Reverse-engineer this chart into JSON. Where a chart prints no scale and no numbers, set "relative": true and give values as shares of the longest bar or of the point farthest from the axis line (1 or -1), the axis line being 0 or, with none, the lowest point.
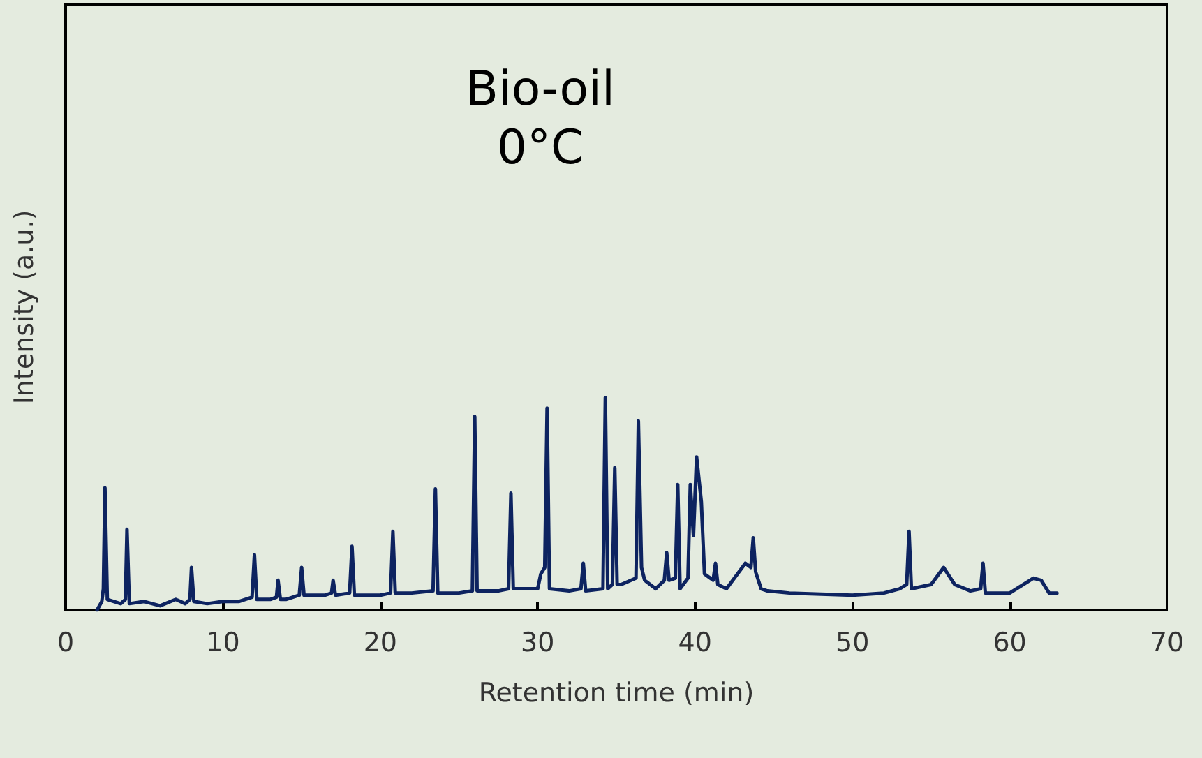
{
  "chart_data": {
    "type": "line",
    "title": "Bio-oil\n0°C",
    "xlabel": "Retention time (min)",
    "ylabel": "Intensity (a.u.)",
    "relative": true,
    "xlim": [
      0,
      70
    ],
    "xticks": [
      0,
      10,
      20,
      30,
      40,
      50,
      60,
      70
    ],
    "grid": false,
    "marker": "none",
    "line_style": "solid",
    "series": [
      {
        "color": "#0d2360",
        "x": [
          2.0,
          2.3,
          2.4,
          2.5,
          2.65,
          3.5,
          3.8,
          3.9,
          4.05,
          5.0,
          6.0,
          7.0,
          7.6,
          7.9,
          8.0,
          8.15,
          9.0,
          10.0,
          11.0,
          11.85,
          12.0,
          12.15,
          13.0,
          13.4,
          13.5,
          13.65,
          14.0,
          14.85,
          15.0,
          15.15,
          16.5,
          16.9,
          17.0,
          17.15,
          18.05,
          18.2,
          18.35,
          20.0,
          20.65,
          20.8,
          20.95,
          22.0,
          23.35,
          23.5,
          23.65,
          25.0,
          25.85,
          26.0,
          26.15,
          27.5,
          28.15,
          28.3,
          28.45,
          30.0,
          30.2,
          30.45,
          30.6,
          30.75,
          32.0,
          32.75,
          32.9,
          33.05,
          34.15,
          34.3,
          34.45,
          34.75,
          34.9,
          35.05,
          35.3,
          36.25,
          36.4,
          36.6,
          36.8,
          37.5,
          38.05,
          38.2,
          38.35,
          38.75,
          38.9,
          39.05,
          39.55,
          39.7,
          39.9,
          40.1,
          40.4,
          40.6,
          41.15,
          41.3,
          41.45,
          42.0,
          43.2,
          43.55,
          43.7,
          43.85,
          44.2,
          44.6,
          46.0,
          50.0,
          52.0,
          53.0,
          53.45,
          53.6,
          53.75,
          55.0,
          55.8,
          56.5,
          57.5,
          58.15,
          58.3,
          58.45,
          60.0,
          61.5,
          62.0,
          62.5,
          63.0
        ],
        "values": [
          0,
          0.04,
          0.1,
          0.575,
          0.05,
          0.03,
          0.05,
          0.38,
          0.03,
          0.04,
          0.02,
          0.05,
          0.03,
          0.05,
          0.2,
          0.04,
          0.03,
          0.04,
          0.04,
          0.06,
          0.26,
          0.05,
          0.05,
          0.06,
          0.14,
          0.05,
          0.05,
          0.07,
          0.2,
          0.07,
          0.07,
          0.08,
          0.14,
          0.07,
          0.08,
          0.3,
          0.07,
          0.07,
          0.08,
          0.37,
          0.08,
          0.08,
          0.09,
          0.57,
          0.08,
          0.08,
          0.09,
          0.91,
          0.09,
          0.09,
          0.1,
          0.55,
          0.1,
          0.1,
          0.17,
          0.2,
          0.95,
          0.1,
          0.09,
          0.1,
          0.22,
          0.09,
          0.1,
          1,
          0.1,
          0.12,
          0.67,
          0.12,
          0.12,
          0.15,
          0.89,
          0.2,
          0.14,
          0.1,
          0.14,
          0.27,
          0.14,
          0.15,
          0.59,
          0.1,
          0.15,
          0.59,
          0.35,
          0.72,
          0.51,
          0.17,
          0.14,
          0.22,
          0.12,
          0.1,
          0.22,
          0.2,
          0.34,
          0.18,
          0.1,
          0.09,
          0.08,
          0.07,
          0.08,
          0.1,
          0.12,
          0.37,
          0.1,
          0.12,
          0.2,
          0.12,
          0.09,
          0.1,
          0.22,
          0.08,
          0.08,
          0.15,
          0.14,
          0.08,
          0.08
        ]
      }
    ]
  }
}
